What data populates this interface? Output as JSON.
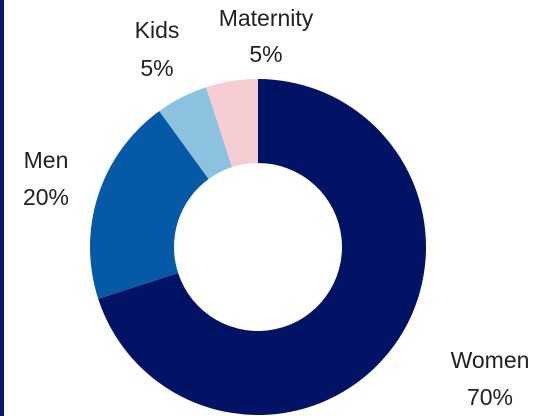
{
  "chart_data": {
    "type": "pie",
    "variant": "donut",
    "start_angle_deg": 0,
    "direction": "clockwise",
    "slices": [
      {
        "label": "Women",
        "value": 70,
        "value_label": "70%",
        "color": "#021264"
      },
      {
        "label": "Men",
        "value": 20,
        "value_label": "20%",
        "color": "#0659a6"
      },
      {
        "label": "Kids",
        "value": 5,
        "value_label": "5%",
        "color": "#8cc1df"
      },
      {
        "label": "Maternity",
        "value": 5,
        "value_label": "5%",
        "color": "#f6cdd2"
      }
    ],
    "legend": "none"
  },
  "colors": {
    "background": "#ffffff",
    "label_text": "#222222",
    "frame_rule": "#0b1a66"
  }
}
